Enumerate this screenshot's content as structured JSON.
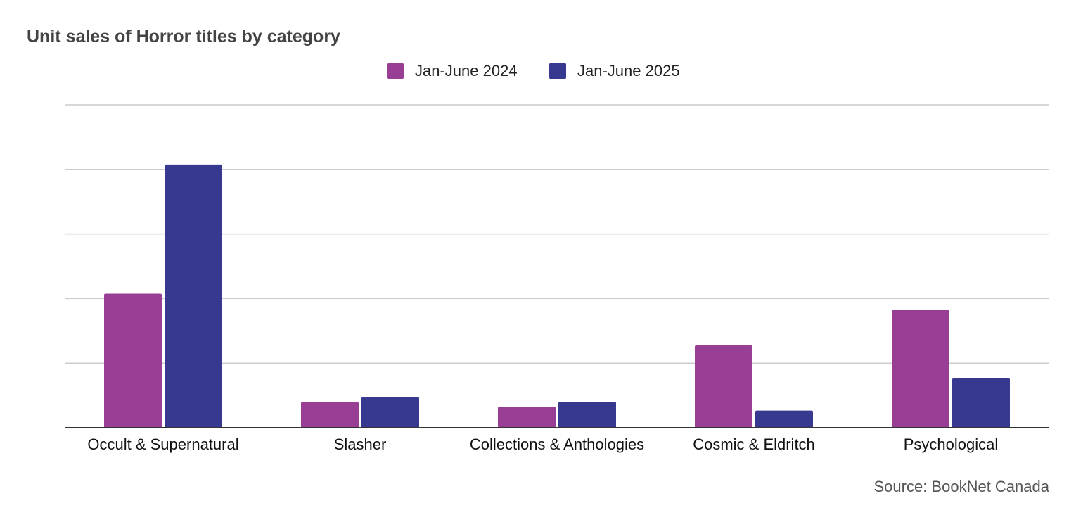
{
  "chart_data": {
    "type": "bar",
    "title": "Unit sales of Horror titles by category",
    "xlabel": "",
    "ylabel": "",
    "categories": [
      "Occult & Supernatural",
      "Slasher",
      "Collections & Anthologies",
      "Cosmic & Eldritch",
      "Psychological"
    ],
    "series": [
      {
        "name": "Jan-June 2024",
        "color": "#993e95",
        "values": [
          41.5,
          8.0,
          6.5,
          25.5,
          36.5
        ]
      },
      {
        "name": "Jan-June 2025",
        "color": "#37388f",
        "values": [
          81.5,
          9.5,
          8.0,
          5.3,
          15.3
        ]
      }
    ],
    "ylim": [
      0,
      100
    ],
    "gridlines": true,
    "y_tick_labels_shown": false,
    "legend_position": "top-center",
    "source": "Source: BookNet Canada",
    "colors": {
      "grid": "#cccccc",
      "axis": "#333333"
    }
  }
}
